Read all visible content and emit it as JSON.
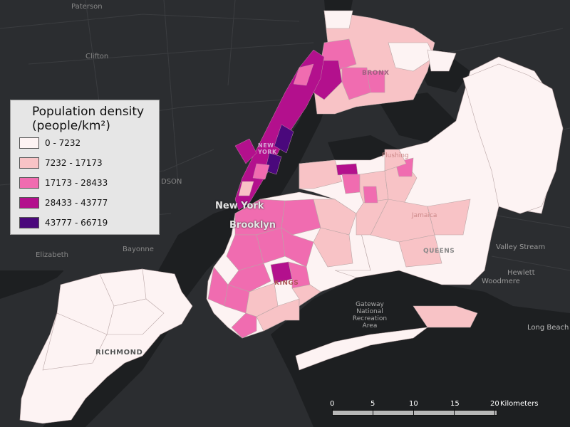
{
  "legend": {
    "title_line1": "Population density",
    "title_line2": "(people/km²)",
    "classes": [
      {
        "label": "0 - 7232",
        "color": "#fdf3f3"
      },
      {
        "label": "7232 - 17173",
        "color": "#f8c3c6"
      },
      {
        "label": "17173 - 28433",
        "color": "#f06cb0"
      },
      {
        "label": "28433 - 43777",
        "color": "#b3108d"
      },
      {
        "label": "43777 - 66719",
        "color": "#4a087c"
      }
    ]
  },
  "scale": {
    "ticks": [
      "0",
      "5",
      "10",
      "15",
      "20"
    ],
    "unit": "Kilometers"
  },
  "places": {
    "paterson": "Paterson",
    "clifton": "Clifton",
    "elizabeth": "Elizabeth",
    "bayonne": "Bayonne",
    "new_york": "New York",
    "brooklyn": "Brooklyn",
    "valley_stream": "Valley Stream",
    "hewlett": "Hewlett",
    "woodmere": "Woodmere",
    "long_beach": "Long Beach",
    "gateway": "Gateway National Recreation Area",
    "hudson": "DSON",
    "flushing": "Flushing",
    "jamaica": "Jamaica"
  },
  "boroughs": {
    "bronx": "BRONX",
    "manhattan": "NEW YORK",
    "queens": "QUEENS",
    "kings": "KINGS",
    "richmond": "RICHMOND"
  },
  "colors": {
    "background": "#2b2d30",
    "water": "#1d1f21",
    "class0": "#fdf3f3",
    "class1": "#f8c3c6",
    "class2": "#f06cb0",
    "class3": "#b3108d",
    "class4": "#4a087c"
  }
}
